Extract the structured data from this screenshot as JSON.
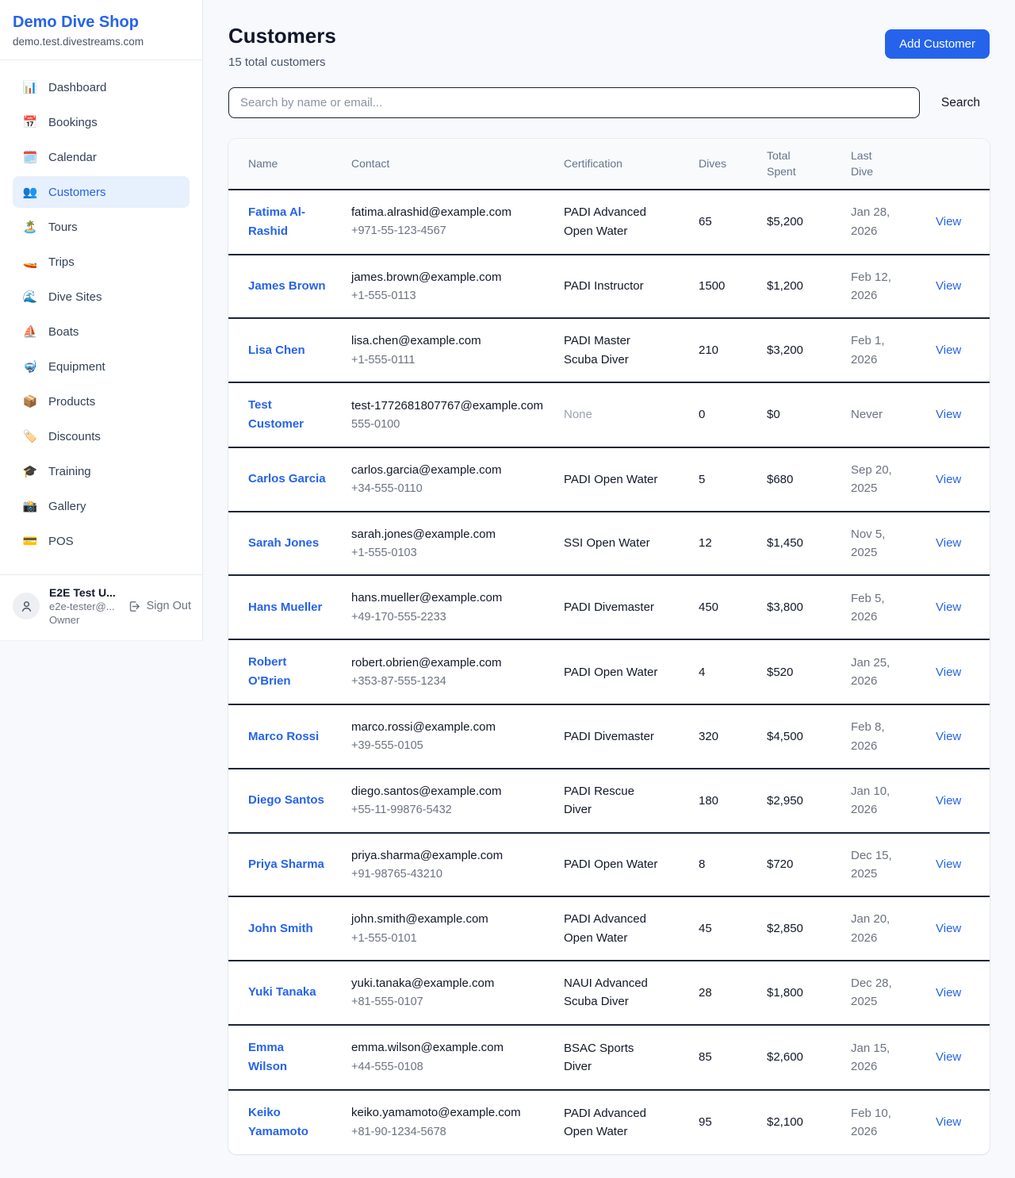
{
  "colors": {
    "accent": "#2563eb",
    "accent_light_bg": "#e7f0fd",
    "page_bg": "#f7f9fc",
    "row_border": "#1c2536",
    "muted_text": "#6b7280"
  },
  "sidebar": {
    "brand": {
      "name": "Demo Dive Shop",
      "domain": "demo.test.divestreams.com"
    },
    "items": [
      {
        "label": "Dashboard",
        "icon": "📊",
        "icon_name": "bar-chart-icon",
        "active": false
      },
      {
        "label": "Bookings",
        "icon": "📅",
        "icon_name": "calendar-icon",
        "active": false
      },
      {
        "label": "Calendar",
        "icon": "🗓️",
        "icon_name": "spiral-calendar-icon",
        "active": false
      },
      {
        "label": "Customers",
        "icon": "👥",
        "icon_name": "people-icon",
        "active": true
      },
      {
        "label": "Tours",
        "icon": "🏝️",
        "icon_name": "island-icon",
        "active": false
      },
      {
        "label": "Trips",
        "icon": "🚤",
        "icon_name": "speedboat-icon",
        "active": false
      },
      {
        "label": "Dive Sites",
        "icon": "🌊",
        "icon_name": "wave-icon",
        "active": false
      },
      {
        "label": "Boats",
        "icon": "⛵",
        "icon_name": "sailboat-icon",
        "active": false
      },
      {
        "label": "Equipment",
        "icon": "🤿",
        "icon_name": "diving-mask-icon",
        "active": false
      },
      {
        "label": "Products",
        "icon": "📦",
        "icon_name": "package-icon",
        "active": false
      },
      {
        "label": "Discounts",
        "icon": "🏷️",
        "icon_name": "tag-icon",
        "active": false
      },
      {
        "label": "Training",
        "icon": "🎓",
        "icon_name": "graduation-cap-icon",
        "active": false
      },
      {
        "label": "Gallery",
        "icon": "📸",
        "icon_name": "camera-icon",
        "active": false
      },
      {
        "label": "POS",
        "icon": "💳",
        "icon_name": "credit-card-icon",
        "active": false
      }
    ],
    "user": {
      "name": "E2E Test U...",
      "email": "e2e-tester@...",
      "role": "Owner",
      "sign_out_label": "Sign Out"
    }
  },
  "header": {
    "title": "Customers",
    "subtitle": "15 total customers",
    "add_button_label": "Add Customer"
  },
  "search": {
    "placeholder": "Search by name or email...",
    "button_label": "Search"
  },
  "table": {
    "columns": [
      "Name",
      "Contact",
      "Certification",
      "Dives",
      "Total Spent",
      "Last Dive",
      ""
    ],
    "view_label": "View",
    "rows": [
      {
        "name": "Fatima Al-Rashid",
        "email": "fatima.alrashid@example.com",
        "phone": "+971-55-123-4567",
        "certification": "PADI Advanced Open Water",
        "dives": "65",
        "total_spent": "$5,200",
        "last_dive": "Jan 28, 2026"
      },
      {
        "name": "James Brown",
        "email": "james.brown@example.com",
        "phone": "+1-555-0113",
        "certification": "PADI Instructor",
        "dives": "1500",
        "total_spent": "$1,200",
        "last_dive": "Feb 12, 2026"
      },
      {
        "name": "Lisa Chen",
        "email": "lisa.chen@example.com",
        "phone": "+1-555-0111",
        "certification": "PADI Master Scuba Diver",
        "dives": "210",
        "total_spent": "$3,200",
        "last_dive": "Feb 1, 2026"
      },
      {
        "name": "Test Customer",
        "email": "test-1772681807767@example.com",
        "phone": "555-0100",
        "certification": "None",
        "dives": "0",
        "total_spent": "$0",
        "last_dive": "Never"
      },
      {
        "name": "Carlos Garcia",
        "email": "carlos.garcia@example.com",
        "phone": "+34-555-0110",
        "certification": "PADI Open Water",
        "dives": "5",
        "total_spent": "$680",
        "last_dive": "Sep 20, 2025"
      },
      {
        "name": "Sarah Jones",
        "email": "sarah.jones@example.com",
        "phone": "+1-555-0103",
        "certification": "SSI Open Water",
        "dives": "12",
        "total_spent": "$1,450",
        "last_dive": "Nov 5, 2025"
      },
      {
        "name": "Hans Mueller",
        "email": "hans.mueller@example.com",
        "phone": "+49-170-555-2233",
        "certification": "PADI Divemaster",
        "dives": "450",
        "total_spent": "$3,800",
        "last_dive": "Feb 5, 2026"
      },
      {
        "name": "Robert O'Brien",
        "email": "robert.obrien@example.com",
        "phone": "+353-87-555-1234",
        "certification": "PADI Open Water",
        "dives": "4",
        "total_spent": "$520",
        "last_dive": "Jan 25, 2026"
      },
      {
        "name": "Marco Rossi",
        "email": "marco.rossi@example.com",
        "phone": "+39-555-0105",
        "certification": "PADI Divemaster",
        "dives": "320",
        "total_spent": "$4,500",
        "last_dive": "Feb 8, 2026"
      },
      {
        "name": "Diego Santos",
        "email": "diego.santos@example.com",
        "phone": "+55-11-99876-5432",
        "certification": "PADI Rescue Diver",
        "dives": "180",
        "total_spent": "$2,950",
        "last_dive": "Jan 10, 2026"
      },
      {
        "name": "Priya Sharma",
        "email": "priya.sharma@example.com",
        "phone": "+91-98765-43210",
        "certification": "PADI Open Water",
        "dives": "8",
        "total_spent": "$720",
        "last_dive": "Dec 15, 2025"
      },
      {
        "name": "John Smith",
        "email": "john.smith@example.com",
        "phone": "+1-555-0101",
        "certification": "PADI Advanced Open Water",
        "dives": "45",
        "total_spent": "$2,850",
        "last_dive": "Jan 20, 2026"
      },
      {
        "name": "Yuki Tanaka",
        "email": "yuki.tanaka@example.com",
        "phone": "+81-555-0107",
        "certification": "NAUI Advanced Scuba Diver",
        "dives": "28",
        "total_spent": "$1,800",
        "last_dive": "Dec 28, 2025"
      },
      {
        "name": "Emma Wilson",
        "email": "emma.wilson@example.com",
        "phone": "+44-555-0108",
        "certification": "BSAC Sports Diver",
        "dives": "85",
        "total_spent": "$2,600",
        "last_dive": "Jan 15, 2026"
      },
      {
        "name": "Keiko Yamamoto",
        "email": "keiko.yamamoto@example.com",
        "phone": "+81-90-1234-5678",
        "certification": "PADI Advanced Open Water",
        "dives": "95",
        "total_spent": "$2,100",
        "last_dive": "Feb 10, 2026"
      }
    ]
  }
}
